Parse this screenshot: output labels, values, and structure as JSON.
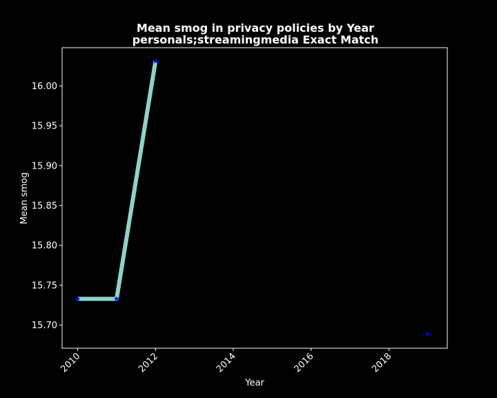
{
  "chart_data": {
    "type": "line",
    "title": "Mean smog in privacy policies by Year",
    "subtitle": "personals;streamingmedia Exact Match",
    "xlabel": "Year",
    "ylabel": "Mean smog",
    "xlim": [
      2009.6,
      2019.5
    ],
    "ylim": [
      15.671,
      16.048
    ],
    "xticks": [
      "2010",
      "2012",
      "2014",
      "2016",
      "2018"
    ],
    "yticks": [
      "15.70",
      "15.75",
      "15.80",
      "15.85",
      "15.90",
      "15.95",
      "16.00"
    ],
    "grid": false,
    "series": [
      {
        "x": [
          2010,
          2011,
          2012
        ],
        "y": [
          15.733,
          15.733,
          16.031
        ],
        "style": "line+star"
      },
      {
        "x": [
          2019
        ],
        "y": [
          15.689
        ],
        "style": "star"
      }
    ],
    "colors": {
      "line": "#8dd3c7",
      "marker": "#0000ff",
      "background": "#000000",
      "text": "#ffffff"
    }
  }
}
